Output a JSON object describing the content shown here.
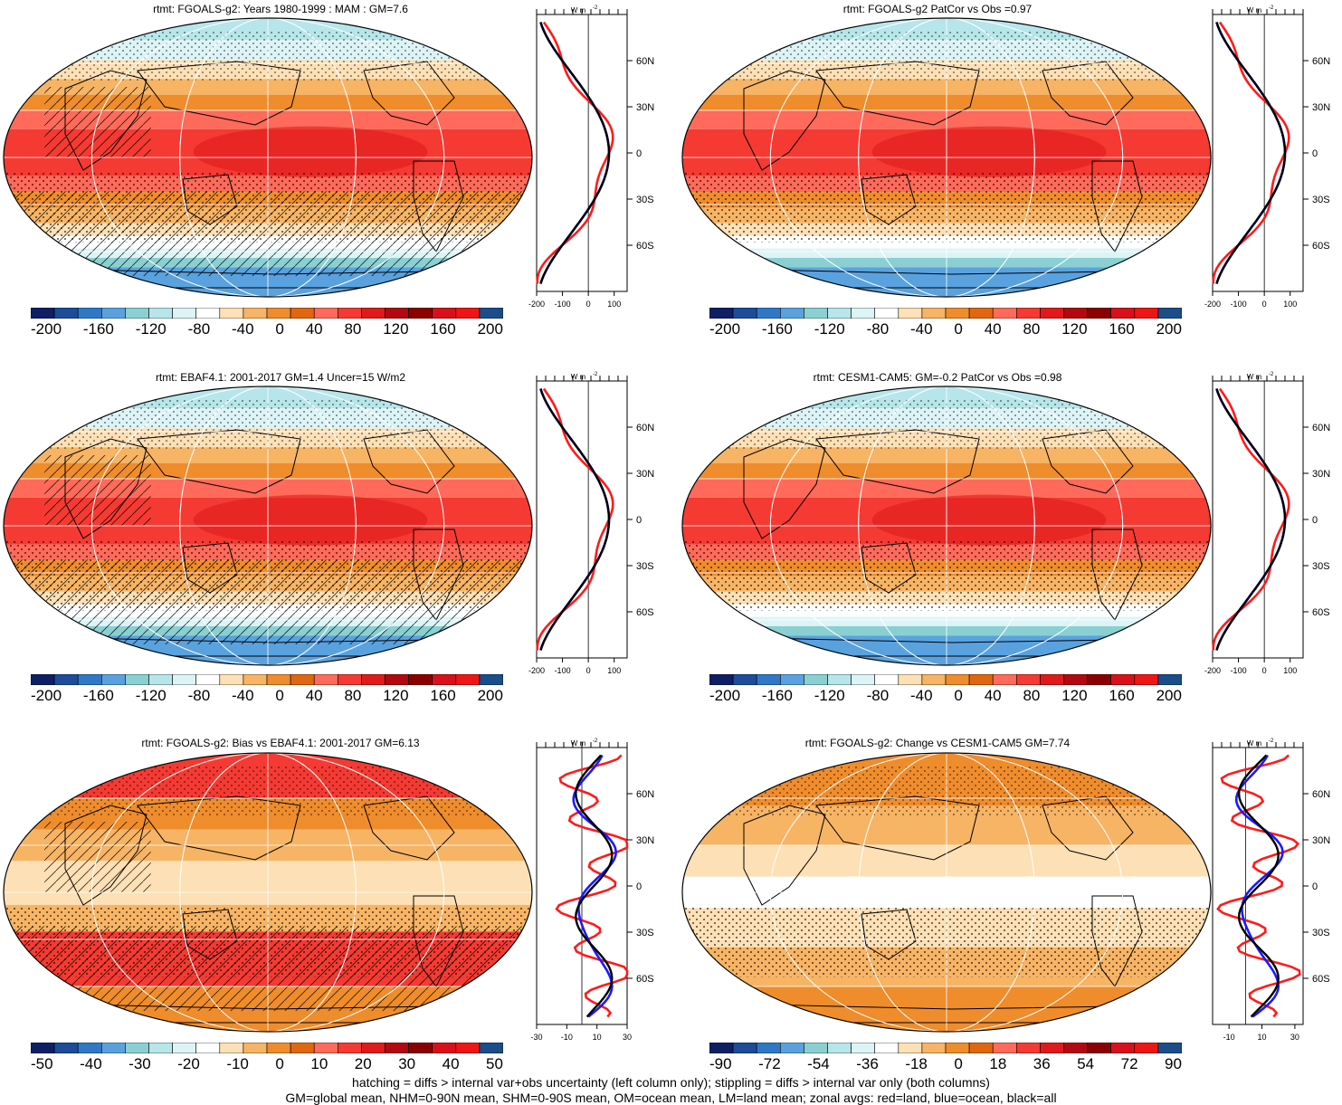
{
  "palette": [
    "#0f1f66",
    "#1c4c9a",
    "#2f78c7",
    "#5aa2df",
    "#8ad0d2",
    "#b6e6ea",
    "#ddf4f6",
    "#ffffff",
    "#fde0b5",
    "#f7b465",
    "#ef8c2c",
    "#e0670f",
    "#ff6a5a",
    "#f43a32",
    "#e01a1a",
    "#b3080f",
    "#8a0000",
    "#d8101a",
    "#f01515",
    "#1a4e8a"
  ],
  "zonal": {
    "unit": "W m",
    "unit_sup": "-2",
    "lat_labels": [
      "60N",
      "30N",
      "0",
      "30S",
      "60S"
    ],
    "lat_values": [
      60,
      30,
      0,
      -30,
      -60
    ]
  },
  "panels": [
    {
      "id": "p1",
      "title": "rtmt: FGOALS-g2: Years 1980-1999 : MAM : GM=7.6",
      "kind": "clim",
      "hatch": true,
      "cb_labels": [
        "-200",
        "-160",
        "-120",
        "-80",
        "-40",
        "0",
        "40",
        "80",
        "120",
        "160",
        "200"
      ],
      "zonal_ticks": [
        "-200",
        "-100",
        "0",
        "100"
      ],
      "zonal_range": [
        -200,
        150
      ]
    },
    {
      "id": "p2",
      "title": "rtmt: FGOALS-g2 PatCor vs Obs =0.97",
      "kind": "clim",
      "hatch": false,
      "cb_labels": [
        "-200",
        "-160",
        "-120",
        "-80",
        "-40",
        "0",
        "40",
        "80",
        "120",
        "160",
        "200"
      ],
      "zonal_ticks": [
        "-200",
        "-100",
        "0",
        "100"
      ],
      "zonal_range": [
        -200,
        150
      ]
    },
    {
      "id": "p3",
      "title": "rtmt: EBAF4.1: 2001-2017 GM=1.4 Uncer=15 W/m2",
      "kind": "clim",
      "hatch": true,
      "cb_labels": [
        "-200",
        "-160",
        "-120",
        "-80",
        "-40",
        "0",
        "40",
        "80",
        "120",
        "160",
        "200"
      ],
      "zonal_ticks": [
        "-200",
        "-100",
        "0",
        "100"
      ],
      "zonal_range": [
        -200,
        150
      ]
    },
    {
      "id": "p4",
      "title": "rtmt: CESM1-CAM5: GM=-0.2 PatCor vs Obs =0.98",
      "kind": "clim",
      "hatch": false,
      "cb_labels": [
        "-200",
        "-160",
        "-120",
        "-80",
        "-40",
        "0",
        "40",
        "80",
        "120",
        "160",
        "200"
      ],
      "zonal_ticks": [
        "-200",
        "-100",
        "0",
        "100"
      ],
      "zonal_range": [
        -200,
        150
      ]
    },
    {
      "id": "p5",
      "title": "rtmt: FGOALS-g2: Bias vs EBAF4.1: 2001-2017 GM=6.13",
      "kind": "bias",
      "hatch": true,
      "cb_labels": [
        "-50",
        "-40",
        "-30",
        "-20",
        "-10",
        "0",
        "10",
        "20",
        "30",
        "40",
        "50"
      ],
      "zonal_ticks": [
        "-30",
        "-10",
        "10",
        "30"
      ],
      "zonal_range": [
        -30,
        30
      ]
    },
    {
      "id": "p6",
      "title": "rtmt: FGOALS-g2: Change vs CESM1-CAM5 GM=7.74",
      "kind": "bias",
      "hatch": false,
      "cb_labels": [
        "-90",
        "-72",
        "-54",
        "-36",
        "-18",
        "0",
        "18",
        "36",
        "54",
        "72",
        "90"
      ],
      "zonal_ticks": [
        "-10",
        "10",
        "30"
      ],
      "zonal_range": [
        -20,
        35
      ]
    }
  ],
  "footer": {
    "line1": "hatching = diffs > internal var+obs uncertainty (left column only); stippling = diffs > internal var only (both columns)",
    "line2": "GM=global mean, NHM=0-90N mean, SHM=0-90S mean, OM=ocean mean, LM=land mean; zonal avgs: red=land, blue=ocean, black=all"
  }
}
